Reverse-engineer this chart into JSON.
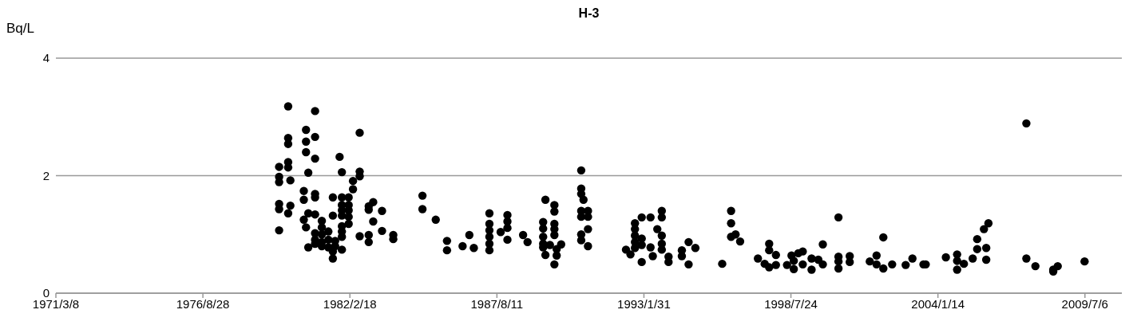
{
  "chart_data": {
    "type": "scatter",
    "title": "H-3",
    "ylabel": "Bq/L",
    "color": "#000000",
    "marker": "circle",
    "grid": "y",
    "legend": false,
    "xlim": [
      "1971-03-08",
      "2010-11-20"
    ],
    "xticks": [
      {
        "value": "1971-03-08",
        "label": "1971/3/8"
      },
      {
        "value": "1976-08-28",
        "label": "1976/8/28"
      },
      {
        "value": "1982-02-18",
        "label": "1982/2/18"
      },
      {
        "value": "1987-08-11",
        "label": "1987/8/11"
      },
      {
        "value": "1993-01-31",
        "label": "1993/1/31"
      },
      {
        "value": "1998-07-24",
        "label": "1998/7/24"
      },
      {
        "value": "2004-01-14",
        "label": "2004/1/14"
      },
      {
        "value": "2009-07-06",
        "label": "2009/7/6"
      }
    ],
    "ylim": [
      0,
      4
    ],
    "yticks": [
      0,
      2,
      4
    ],
    "x": [
      "1979-11",
      "1980-11",
      "1980-07",
      "1979-11",
      "1979-11",
      "1980-11",
      "1980-07",
      "1982-07",
      "1980-07",
      "1980-11",
      "1981-10",
      "1979-11",
      "1979-07",
      "1979-11",
      "1980-08",
      "1981-11",
      "1982-07",
      "1982-07",
      "1979-07",
      "1979-07",
      "1979-12",
      "1982-04",
      "1982-04",
      "1980-06",
      "1980-11",
      "1980-06",
      "1980-11",
      "1981-07",
      "1981-11",
      "1982-02",
      "1979-07",
      "1979-07",
      "1979-12",
      "1979-11",
      "1981-11",
      "1982-02",
      "1981-11",
      "1982-02",
      "1981-07",
      "1981-11",
      "1982-02",
      "1980-08",
      "1980-11",
      "1980-06",
      "1981-02",
      "1982-02",
      "1981-11",
      "1980-07",
      "1979-07",
      "1981-02",
      "1980-11",
      "1981-05",
      "1981-11",
      "1981-11",
      "1981-02",
      "1980-11",
      "1981-05",
      "1981-08",
      "1981-02",
      "1980-11",
      "1981-08",
      "1981-02",
      "1980-08",
      "1981-05",
      "1981-11",
      "1981-07",
      "1981-07",
      "1982-11",
      "1983-01",
      "1982-11",
      "1983-05",
      "1983-01",
      "1983-05",
      "1982-07",
      "1982-11",
      "1982-11",
      "1983-10",
      "1983-10",
      "1984-11",
      "1984-11",
      "1985-05",
      "1985-10",
      "1985-10",
      "1986-08",
      "1986-05",
      "1986-10",
      "1987-05",
      "1987-05",
      "1987-05",
      "1987-05",
      "1987-05",
      "1987-05",
      "1987-10",
      "1988-01",
      "1988-01",
      "1988-01",
      "1988-01",
      "1988-08",
      "1988-10",
      "1989-06",
      "1989-10",
      "1989-10",
      "1989-05",
      "1989-10",
      "1989-05",
      "1989-10",
      "1989-05",
      "1989-10",
      "1989-05",
      "1989-08",
      "1990-01",
      "1989-05",
      "1989-11",
      "1989-06",
      "1989-11",
      "1989-10",
      "1990-10",
      "1990-10",
      "1990-10",
      "1990-11",
      "1990-10",
      "1991-01",
      "1990-10",
      "1991-01",
      "1991-01",
      "1990-10",
      "1990-10",
      "1991-01",
      "1992-06",
      "1992-08",
      "1992-10",
      "1992-10",
      "1992-10",
      "1992-10",
      "1992-10",
      "1993-01",
      "1993-01",
      "1993-01",
      "1993-01",
      "1993-05",
      "1993-08",
      "1993-05",
      "1993-06",
      "1993-10",
      "1993-10",
      "1993-10",
      "1993-10",
      "1993-10",
      "1994-01",
      "1994-01",
      "1994-07",
      "1994-07",
      "1994-10",
      "1995-01",
      "1994-10",
      "1996-01",
      "1996-05",
      "1996-05",
      "1996-05",
      "1996-07",
      "1996-09",
      "1997-05",
      "1997-10",
      "1997-10",
      "1998-01",
      "1997-08",
      "1997-10",
      "1998-01",
      "1998-06",
      "1998-08",
      "1998-09",
      "1998-09",
      "1998-11",
      "1999-01",
      "1999-01",
      "1999-05",
      "1999-05",
      "1999-08",
      "1999-10",
      "1999-10",
      "2000-05",
      "2000-05",
      "2000-05",
      "2000-05",
      "2000-10",
      "2000-10",
      "2001-07",
      "2001-10",
      "2001-10",
      "2002-01",
      "2002-01",
      "2002-05",
      "2002-11",
      "2003-02",
      "2003-07",
      "2003-08",
      "2004-05",
      "2004-10",
      "2004-10",
      "2005-01",
      "2004-10",
      "2005-05",
      "2005-07",
      "2005-07",
      "2005-10",
      "2005-11",
      "2005-11",
      "2005-12",
      "2007-05",
      "2007-05",
      "2007-09",
      "2008-05",
      "2008-05",
      "2008-07",
      "2009-07"
    ],
    "values": [
      3.18,
      3.1,
      2.78,
      2.64,
      2.54,
      2.66,
      2.58,
      2.73,
      2.4,
      2.29,
      2.32,
      2.23,
      2.15,
      2.14,
      2.05,
      2.06,
      2.07,
      1.99,
      1.98,
      1.89,
      1.92,
      1.91,
      1.77,
      1.74,
      1.69,
      1.59,
      1.63,
      1.63,
      1.63,
      1.63,
      1.52,
      1.43,
      1.49,
      1.36,
      1.5,
      1.5,
      1.41,
      1.41,
      1.32,
      1.32,
      1.3,
      1.36,
      1.34,
      1.25,
      1.23,
      1.18,
      1.14,
      1.12,
      1.07,
      1.12,
      1.02,
      1.05,
      1.05,
      0.96,
      1.0,
      0.91,
      0.91,
      0.89,
      0.87,
      0.84,
      0.8,
      0.8,
      0.78,
      0.78,
      0.74,
      0.71,
      0.59,
      1.48,
      1.55,
      1.42,
      1.4,
      1.22,
      1.06,
      0.97,
      0.99,
      0.87,
      0.99,
      0.92,
      1.66,
      1.43,
      1.25,
      0.89,
      0.73,
      0.99,
      0.8,
      0.77,
      1.36,
      1.18,
      1.07,
      0.96,
      0.84,
      0.73,
      1.04,
      1.33,
      1.22,
      1.11,
      0.91,
      0.99,
      0.87,
      1.59,
      1.5,
      1.39,
      1.21,
      1.18,
      1.1,
      1.09,
      0.96,
      0.99,
      0.84,
      0.82,
      0.83,
      0.78,
      0.75,
      0.65,
      0.64,
      0.49,
      2.09,
      1.78,
      1.69,
      1.59,
      1.4,
      1.4,
      1.3,
      1.3,
      1.09,
      1.0,
      0.9,
      0.8,
      0.74,
      0.66,
      1.19,
      1.09,
      0.98,
      0.87,
      0.77,
      1.29,
      0.93,
      0.82,
      0.53,
      1.29,
      1.09,
      0.78,
      0.63,
      1.4,
      1.29,
      0.98,
      0.84,
      0.74,
      0.62,
      0.53,
      0.73,
      0.63,
      0.87,
      0.77,
      0.49,
      0.5,
      1.4,
      1.19,
      0.96,
      1.0,
      0.88,
      0.59,
      0.84,
      0.73,
      0.65,
      0.5,
      0.44,
      0.48,
      0.48,
      0.64,
      0.55,
      0.41,
      0.68,
      0.71,
      0.49,
      0.59,
      0.4,
      0.57,
      0.49,
      0.83,
      1.29,
      0.62,
      0.54,
      0.42,
      0.63,
      0.53,
      0.54,
      0.64,
      0.49,
      0.95,
      0.42,
      0.49,
      0.48,
      0.59,
      0.49,
      0.49,
      0.61,
      0.66,
      0.55,
      0.5,
      0.4,
      0.59,
      0.75,
      0.92,
      1.09,
      0.77,
      0.57,
      1.19,
      2.89,
      0.59,
      0.46,
      0.37,
      0.4,
      0.46,
      0.54
    ]
  }
}
